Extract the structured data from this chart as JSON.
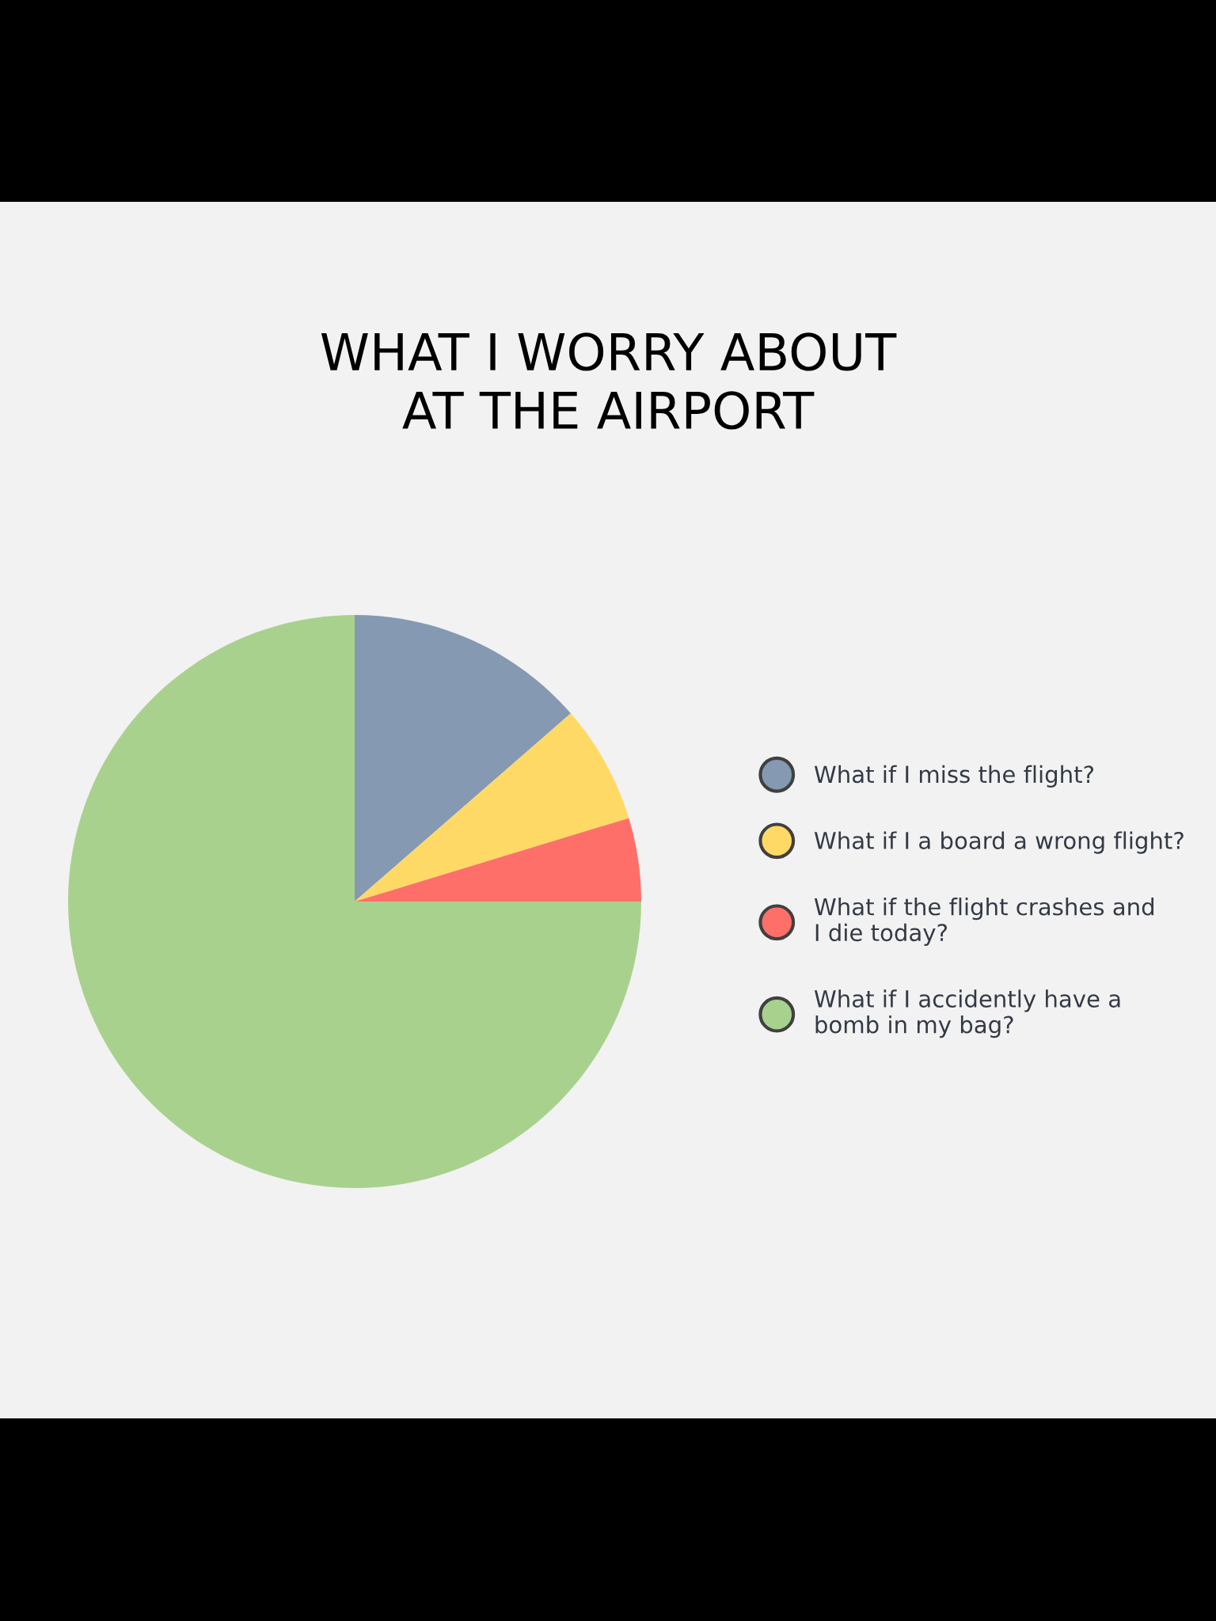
{
  "chart_data": {
    "type": "pie",
    "title": "WHAT I WORRY ABOUT\nAT THE AIRPORT",
    "categories": [
      "What if I miss the flight?",
      "What if I a board a wrong flight?",
      "What if the flight crashes and\nI die today?",
      "What if I accidently have a\nbomb in my bag?"
    ],
    "values": [
      13.6,
      6.7,
      4.7,
      75
    ],
    "colors": [
      "#8599b2",
      "#ffd966",
      "#ff6f69",
      "#a9d18e"
    ],
    "legend": "right"
  }
}
